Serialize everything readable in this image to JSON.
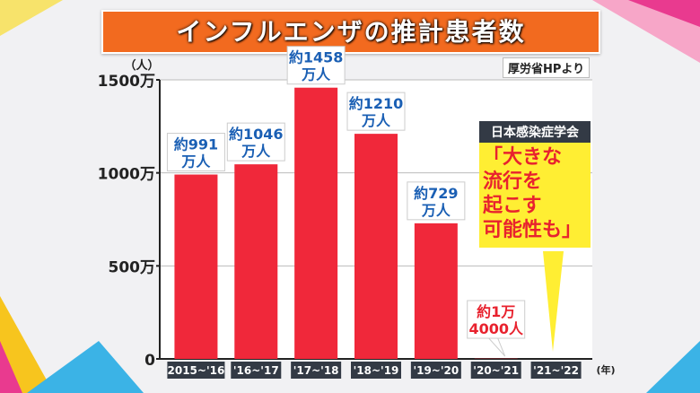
{
  "header": {
    "title": "インフルエンザの推計患者数",
    "source": "厚労省HPより"
  },
  "callout": {
    "heading": "日本感染症学会",
    "text": "「大きな\n流行を\n起こす\n可能性も」"
  },
  "colors": {
    "bar": "#f0283a",
    "label_blue": "#1a5fb4",
    "label_red": "#e8222e",
    "title_bg": "#f26a1f",
    "callout_bg": "#ffee33"
  },
  "chart_data": {
    "type": "bar",
    "title": "インフルエンザの推計患者数",
    "ylabel": "（人）",
    "xlabel": "(年)",
    "ylim": [
      0,
      1500
    ],
    "unit": "万人",
    "yticks": [
      {
        "value": 0,
        "label": "0"
      },
      {
        "value": 500,
        "label": "500万"
      },
      {
        "value": 1000,
        "label": "1000万"
      },
      {
        "value": 1500,
        "label": "1500万"
      }
    ],
    "categories": [
      "2015~'16",
      "'16~'17",
      "'17~'18",
      "'18~'19",
      "'19~'20",
      "'20~'21",
      "'21~'22"
    ],
    "values": [
      991,
      1046,
      1458,
      1210,
      729,
      1.4,
      null
    ],
    "data_labels": [
      [
        "約991",
        "万人"
      ],
      [
        "約1046",
        "万人"
      ],
      [
        "約1458",
        "万人"
      ],
      [
        "約1210",
        "万人"
      ],
      [
        "約729",
        "万人"
      ],
      [
        "約1万",
        "4000人"
      ],
      null
    ],
    "grid": true
  }
}
